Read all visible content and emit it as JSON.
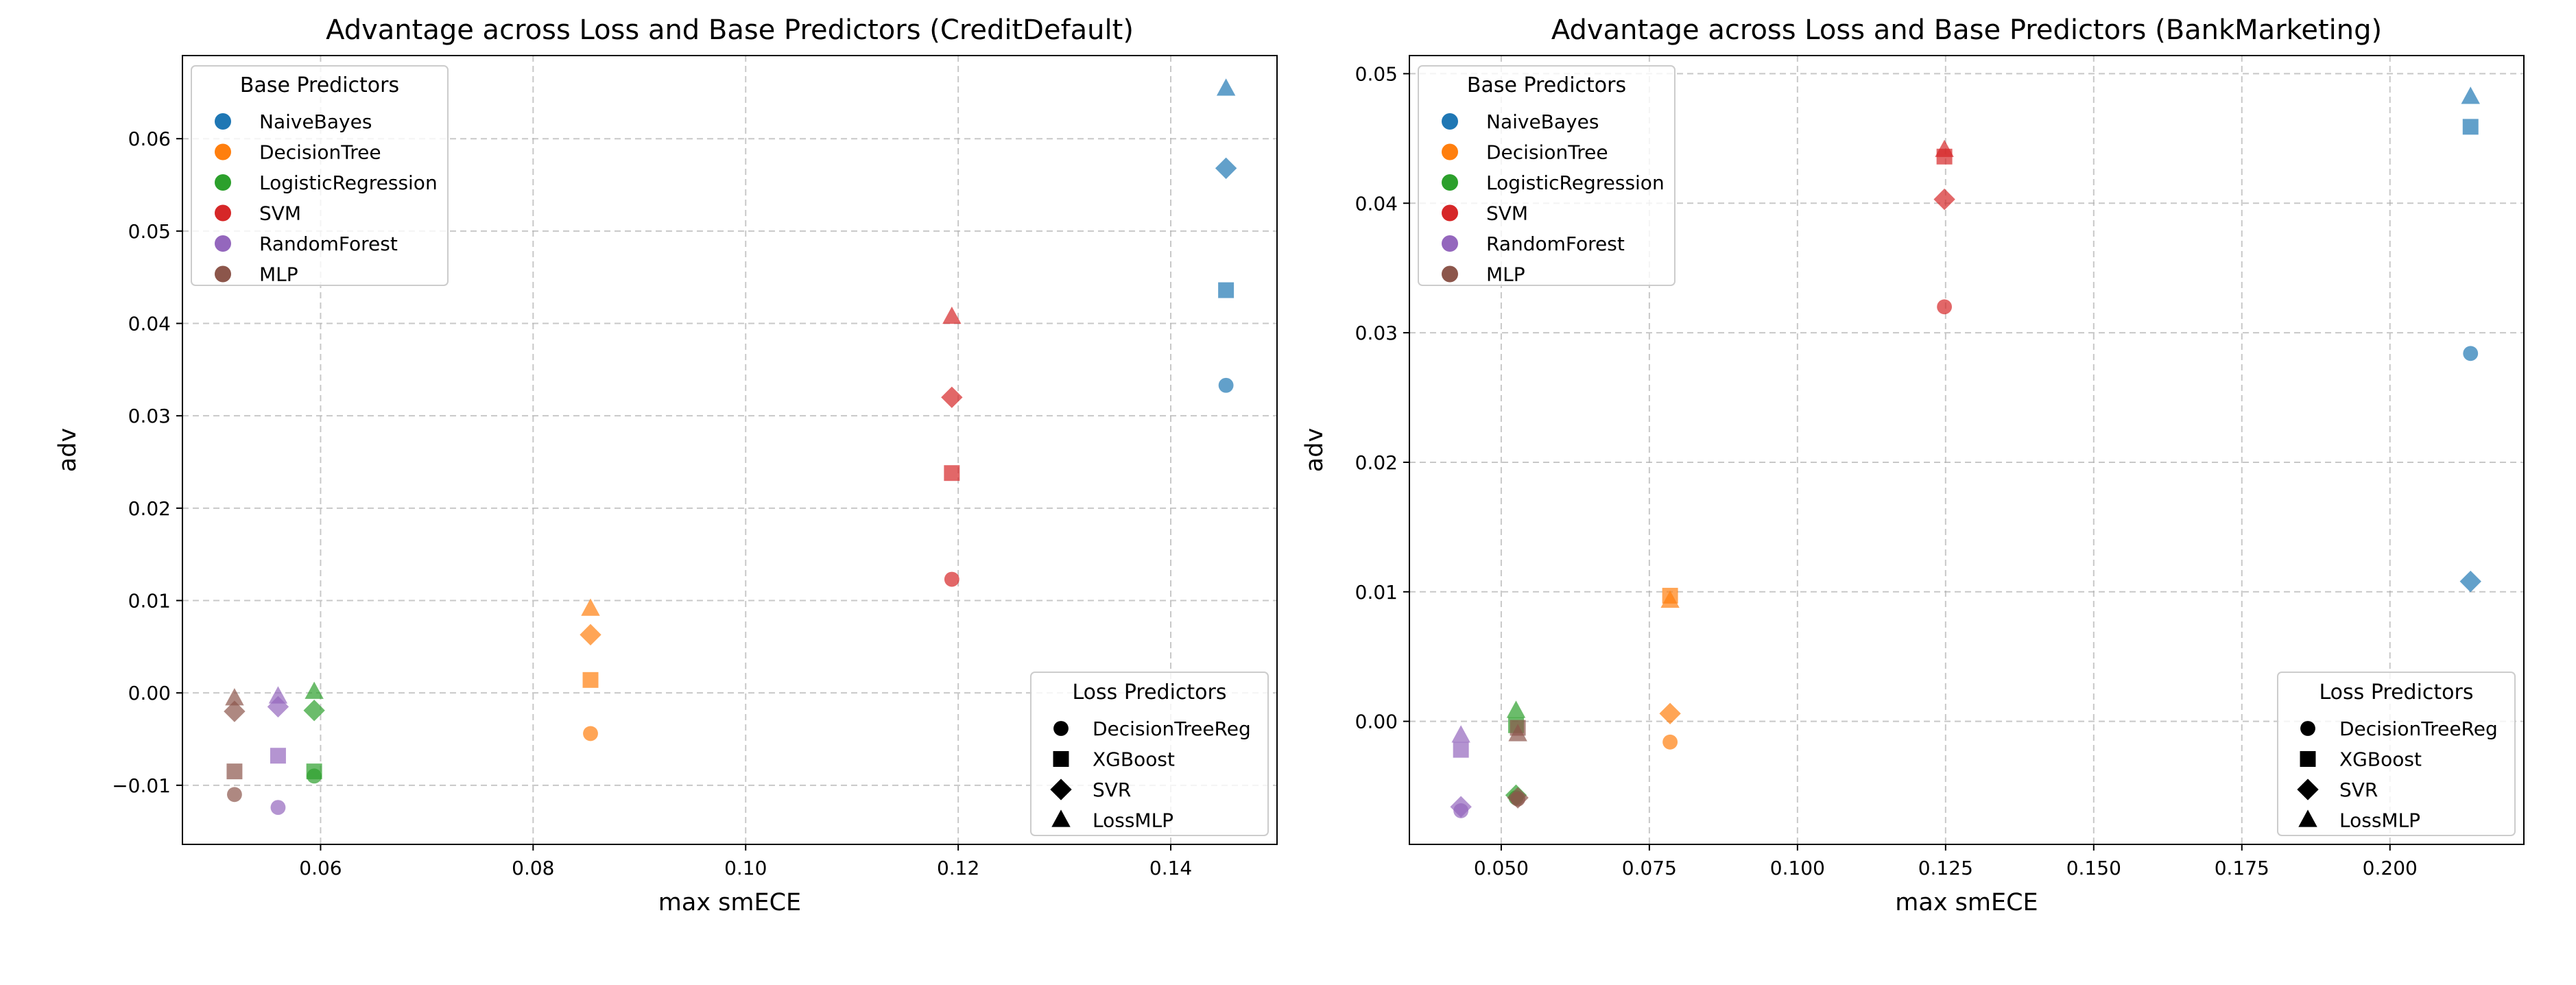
{
  "legend_titles": {
    "base": "Base Predictors",
    "loss": "Loss Predictors"
  },
  "base_predictors": [
    {
      "name": "NaiveBayes",
      "color": "#1f77b4"
    },
    {
      "name": "DecisionTree",
      "color": "#ff7f0e"
    },
    {
      "name": "LogisticRegression",
      "color": "#2ca02c"
    },
    {
      "name": "SVM",
      "color": "#d62728"
    },
    {
      "name": "RandomForest",
      "color": "#9467bd"
    },
    {
      "name": "MLP",
      "color": "#8c564b"
    }
  ],
  "loss_predictors": [
    {
      "name": "DecisionTreeReg",
      "marker": "circle"
    },
    {
      "name": "XGBoost",
      "marker": "square"
    },
    {
      "name": "SVR",
      "marker": "diamond"
    },
    {
      "name": "LossMLP",
      "marker": "triangle"
    }
  ],
  "chart_data": [
    {
      "type": "scatter",
      "title": "Advantage across Loss and Base Predictors (CreditDefault)",
      "xlabel": "max smECE",
      "ylabel": "adv",
      "xlim": [
        0.047,
        0.15
      ],
      "ylim": [
        -0.0164,
        0.069
      ],
      "xticks": [
        0.06,
        0.08,
        0.1,
        0.12,
        0.14
      ],
      "xtick_labels": [
        "0.06",
        "0.08",
        "0.10",
        "0.12",
        "0.14"
      ],
      "yticks": [
        -0.01,
        0.0,
        0.01,
        0.02,
        0.03,
        0.04,
        0.05,
        0.06
      ],
      "ytick_labels": [
        "−0.01",
        "0.00",
        "0.01",
        "0.02",
        "0.03",
        "0.04",
        "0.05",
        "0.06"
      ],
      "grid": true,
      "base_legend_position": "upper-left",
      "loss_legend_position": "lower-right",
      "points": [
        {
          "base": "NaiveBayes",
          "loss": "DecisionTreeReg",
          "x": 0.1452,
          "y": 0.0333
        },
        {
          "base": "NaiveBayes",
          "loss": "XGBoost",
          "x": 0.1452,
          "y": 0.0436
        },
        {
          "base": "NaiveBayes",
          "loss": "SVR",
          "x": 0.1452,
          "y": 0.0568
        },
        {
          "base": "NaiveBayes",
          "loss": "LossMLP",
          "x": 0.1452,
          "y": 0.0654
        },
        {
          "base": "DecisionTree",
          "loss": "DecisionTreeReg",
          "x": 0.0854,
          "y": -0.0044
        },
        {
          "base": "DecisionTree",
          "loss": "XGBoost",
          "x": 0.0854,
          "y": 0.0014
        },
        {
          "base": "DecisionTree",
          "loss": "SVR",
          "x": 0.0854,
          "y": 0.0063
        },
        {
          "base": "DecisionTree",
          "loss": "LossMLP",
          "x": 0.0854,
          "y": 0.0091
        },
        {
          "base": "LogisticRegression",
          "loss": "DecisionTreeReg",
          "x": 0.0594,
          "y": -0.009
        },
        {
          "base": "LogisticRegression",
          "loss": "XGBoost",
          "x": 0.0594,
          "y": -0.0085
        },
        {
          "base": "LogisticRegression",
          "loss": "SVR",
          "x": 0.0594,
          "y": -0.0019
        },
        {
          "base": "LogisticRegression",
          "loss": "LossMLP",
          "x": 0.0594,
          "y": 0.0001
        },
        {
          "base": "SVM",
          "loss": "DecisionTreeReg",
          "x": 0.1194,
          "y": 0.0123
        },
        {
          "base": "SVM",
          "loss": "XGBoost",
          "x": 0.1194,
          "y": 0.0238
        },
        {
          "base": "SVM",
          "loss": "SVR",
          "x": 0.1194,
          "y": 0.032
        },
        {
          "base": "SVM",
          "loss": "LossMLP",
          "x": 0.1194,
          "y": 0.0407
        },
        {
          "base": "RandomForest",
          "loss": "DecisionTreeReg",
          "x": 0.056,
          "y": -0.0124
        },
        {
          "base": "RandomForest",
          "loss": "XGBoost",
          "x": 0.056,
          "y": -0.0068
        },
        {
          "base": "RandomForest",
          "loss": "SVR",
          "x": 0.056,
          "y": -0.0015
        },
        {
          "base": "RandomForest",
          "loss": "LossMLP",
          "x": 0.056,
          "y": -0.0004
        },
        {
          "base": "MLP",
          "loss": "DecisionTreeReg",
          "x": 0.0519,
          "y": -0.011
        },
        {
          "base": "MLP",
          "loss": "XGBoost",
          "x": 0.0519,
          "y": -0.0085
        },
        {
          "base": "MLP",
          "loss": "SVR",
          "x": 0.0519,
          "y": -0.002
        },
        {
          "base": "MLP",
          "loss": "LossMLP",
          "x": 0.0519,
          "y": -0.0006
        }
      ]
    },
    {
      "type": "scatter",
      "title": "Advantage across Loss and Base Predictors (BankMarketing)",
      "xlabel": "max smECE",
      "ylabel": "adv",
      "xlim": [
        0.0345,
        0.2226
      ],
      "ylim": [
        -0.0095,
        0.0514
      ],
      "xticks": [
        0.05,
        0.075,
        0.1,
        0.125,
        0.15,
        0.175,
        0.2
      ],
      "xtick_labels": [
        "0.050",
        "0.075",
        "0.100",
        "0.125",
        "0.150",
        "0.175",
        "0.200"
      ],
      "yticks": [
        0.0,
        0.01,
        0.02,
        0.03,
        0.04,
        0.05
      ],
      "ytick_labels": [
        "0.00",
        "0.01",
        "0.02",
        "0.03",
        "0.04",
        "0.05"
      ],
      "grid": true,
      "base_legend_position": "upper-left",
      "loss_legend_position": "lower-right",
      "points": [
        {
          "base": "NaiveBayes",
          "loss": "DecisionTreeReg",
          "x": 0.2136,
          "y": 0.0284
        },
        {
          "base": "NaiveBayes",
          "loss": "XGBoost",
          "x": 0.2136,
          "y": 0.0459
        },
        {
          "base": "NaiveBayes",
          "loss": "SVR",
          "x": 0.2136,
          "y": 0.0108
        },
        {
          "base": "NaiveBayes",
          "loss": "LossMLP",
          "x": 0.2136,
          "y": 0.0482
        },
        {
          "base": "DecisionTree",
          "loss": "DecisionTreeReg",
          "x": 0.0785,
          "y": -0.0016
        },
        {
          "base": "DecisionTree",
          "loss": "XGBoost",
          "x": 0.0785,
          "y": 0.0097
        },
        {
          "base": "DecisionTree",
          "loss": "SVR",
          "x": 0.0785,
          "y": 0.0006
        },
        {
          "base": "DecisionTree",
          "loss": "LossMLP",
          "x": 0.0785,
          "y": 0.0093
        },
        {
          "base": "LogisticRegression",
          "loss": "DecisionTreeReg",
          "x": 0.0525,
          "y": -0.0059
        },
        {
          "base": "LogisticRegression",
          "loss": "XGBoost",
          "x": 0.0525,
          "y": -0.0003
        },
        {
          "base": "LogisticRegression",
          "loss": "SVR",
          "x": 0.0525,
          "y": -0.0057
        },
        {
          "base": "LogisticRegression",
          "loss": "LossMLP",
          "x": 0.0525,
          "y": 0.0008
        },
        {
          "base": "SVM",
          "loss": "DecisionTreeReg",
          "x": 0.1248,
          "y": 0.032
        },
        {
          "base": "SVM",
          "loss": "XGBoost",
          "x": 0.1248,
          "y": 0.0436
        },
        {
          "base": "SVM",
          "loss": "SVR",
          "x": 0.1248,
          "y": 0.0403
        },
        {
          "base": "SVM",
          "loss": "LossMLP",
          "x": 0.1248,
          "y": 0.0441
        },
        {
          "base": "RandomForest",
          "loss": "DecisionTreeReg",
          "x": 0.0432,
          "y": -0.0069
        },
        {
          "base": "RandomForest",
          "loss": "XGBoost",
          "x": 0.0432,
          "y": -0.0022
        },
        {
          "base": "RandomForest",
          "loss": "SVR",
          "x": 0.0432,
          "y": -0.0066
        },
        {
          "base": "RandomForest",
          "loss": "LossMLP",
          "x": 0.0432,
          "y": -0.0011
        },
        {
          "base": "MLP",
          "loss": "DecisionTreeReg",
          "x": 0.0528,
          "y": -0.006
        },
        {
          "base": "MLP",
          "loss": "XGBoost",
          "x": 0.0528,
          "y": -0.0005
        },
        {
          "base": "MLP",
          "loss": "SVR",
          "x": 0.0528,
          "y": -0.0059
        },
        {
          "base": "MLP",
          "loss": "LossMLP",
          "x": 0.0528,
          "y": -0.001
        }
      ]
    }
  ]
}
